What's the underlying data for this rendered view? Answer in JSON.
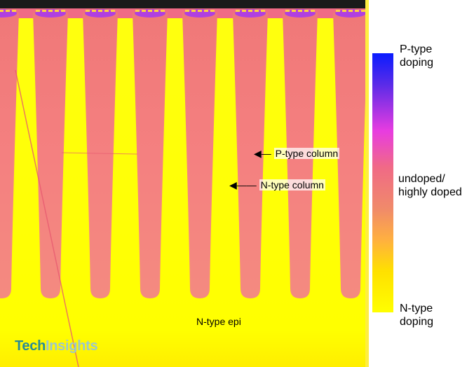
{
  "image": {
    "annotations": {
      "p_type_column": "P-type column",
      "n_type_column": "N-type column",
      "n_type_epi": "N-type epi"
    },
    "logo": {
      "part1": "Tech",
      "part2": "Insights"
    }
  },
  "colorbar": {
    "top_label_line1": "P-type",
    "top_label_line2": "doping",
    "mid_label_line1": "undoped/",
    "mid_label_line2": "highly doped",
    "bottom_label_line1": "N-type",
    "bottom_label_line2": "doping"
  },
  "colors": {
    "n_region": "#ffff00",
    "p_column": "#f48080",
    "top_contact": "#b040e0",
    "p_doping": "#0a1cff"
  }
}
